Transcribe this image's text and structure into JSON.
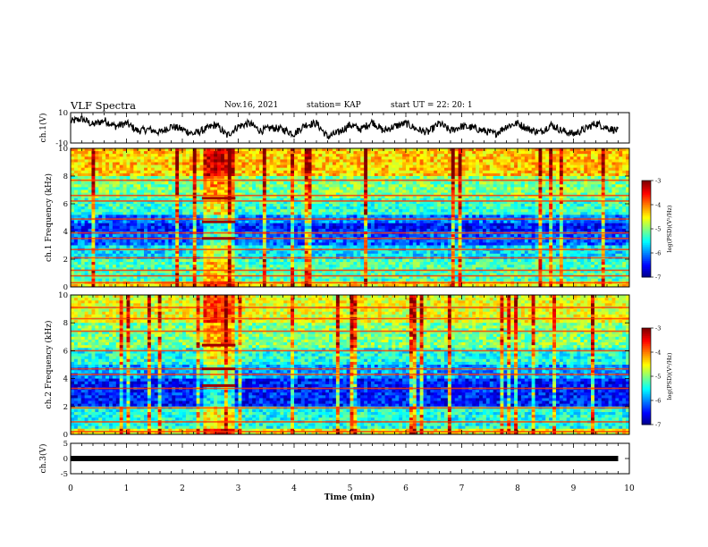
{
  "header": {
    "title": "VLF Spectra",
    "date": "Nov.16, 2021",
    "station": "station= KAP",
    "start": "start  UT  =   22: 20: 1"
  },
  "chart_data": [
    {
      "type": "line",
      "panel": "ch1-waveform",
      "title": "",
      "xlabel": "",
      "ylabel": "ch.1(V)",
      "xlim": [
        0,
        10
      ],
      "ylim": [
        -10,
        10
      ],
      "yticks": [
        "10",
        "-10"
      ],
      "series": [
        {
          "x": [
            0.0,
            0.2,
            0.4,
            0.6,
            0.8,
            1.0,
            1.2,
            1.4,
            1.6,
            1.8,
            2.0,
            2.2,
            2.4,
            2.6,
            2.8,
            3.0,
            3.2,
            3.4,
            3.6,
            3.8,
            4.0,
            4.2,
            4.4,
            4.6,
            4.8,
            5.0,
            5.2,
            5.4,
            5.6,
            5.8,
            6.0,
            6.2,
            6.4,
            6.6,
            6.8,
            7.0,
            7.2,
            7.4,
            7.6,
            7.8,
            8.0,
            8.2,
            8.4,
            8.6,
            8.8,
            9.0,
            9.2,
            9.4,
            9.6,
            9.8
          ],
          "values": [
            4,
            6,
            2,
            5,
            1,
            3,
            -2,
            -1,
            -3,
            1,
            -1,
            -4,
            -1,
            2,
            -5,
            1,
            3,
            -2,
            0,
            -1,
            -4,
            2,
            3,
            -6,
            -3,
            2,
            -1,
            4,
            -2,
            1,
            3,
            -1,
            -3,
            3,
            -2,
            1,
            0,
            -2,
            -4,
            1,
            3,
            -1,
            -3,
            2,
            -2,
            -4,
            -1,
            3,
            0,
            -2
          ]
        }
      ]
    },
    {
      "type": "heatmap",
      "panel": "ch1-spectrogram",
      "title": "",
      "xlabel": "",
      "ylabel": "ch.1 Frequency (kHz)",
      "xlim": [
        0,
        10
      ],
      "ylim": [
        0,
        10
      ],
      "yticks": [
        "0",
        "2",
        "4",
        "6",
        "8",
        "10"
      ],
      "colorbar": {
        "label": "log(PSD)(V²/Hz)",
        "range": [
          -7,
          -3
        ],
        "ticks": [
          "-3",
          "-4",
          "-5",
          "-6",
          "-7"
        ]
      },
      "bands_khz": [
        {
          "from": 8.0,
          "to": 10.0,
          "level": -4.3
        },
        {
          "from": 6.5,
          "to": 8.0,
          "level": -5.0
        },
        {
          "from": 5.2,
          "to": 6.5,
          "level": -5.3
        },
        {
          "from": 4.6,
          "to": 5.2,
          "level": -6.0
        },
        {
          "from": 4.0,
          "to": 4.6,
          "level": -6.4
        },
        {
          "from": 3.0,
          "to": 4.0,
          "level": -6.1
        },
        {
          "from": 2.0,
          "to": 3.0,
          "level": -5.6
        },
        {
          "from": 0.5,
          "to": 2.0,
          "level": -5.2
        },
        {
          "from": 0.0,
          "to": 0.5,
          "level": -4.4
        }
      ],
      "lines_khz": [
        0.3,
        0.8,
        1.2,
        2.1,
        2.7,
        3.5,
        3.9,
        4.9,
        6.2,
        6.6,
        7.7
      ],
      "burst_min": [
        2.35,
        2.95
      ]
    },
    {
      "type": "heatmap",
      "panel": "ch2-spectrogram",
      "title": "",
      "xlabel": "",
      "ylabel": "ch.2 Frequency (kHz)",
      "xlim": [
        0,
        10
      ],
      "ylim": [
        0,
        10
      ],
      "yticks": [
        "0",
        "2",
        "4",
        "6",
        "8",
        "10"
      ],
      "colorbar": {
        "label": "log(PSD)(V²/Hz)",
        "range": [
          -7,
          -3
        ],
        "ticks": [
          "-3",
          "-4",
          "-5",
          "-6",
          "-7"
        ]
      },
      "bands_khz": [
        {
          "from": 8.0,
          "to": 10.0,
          "level": -4.6
        },
        {
          "from": 6.2,
          "to": 8.0,
          "level": -5.0
        },
        {
          "from": 5.0,
          "to": 6.2,
          "level": -5.4
        },
        {
          "from": 4.0,
          "to": 5.0,
          "level": -5.9
        },
        {
          "from": 2.0,
          "to": 4.0,
          "level": -6.4
        },
        {
          "from": 0.5,
          "to": 2.0,
          "level": -5.4
        },
        {
          "from": 0.0,
          "to": 0.5,
          "level": -4.5
        }
      ],
      "lines_khz": [
        0.2,
        0.9,
        1.9,
        3.3,
        4.3,
        4.7,
        6.0,
        7.4,
        8.3,
        9.1
      ],
      "burst_min": [
        2.35,
        2.95
      ]
    },
    {
      "type": "line",
      "panel": "ch3-waveform",
      "title": "",
      "xlabel": "Time  (min)",
      "ylabel": "ch.3(V)",
      "xlim": [
        0,
        10
      ],
      "ylim": [
        -5,
        5
      ],
      "yticks": [
        "5",
        "0",
        "-5"
      ],
      "xticks": [
        "0",
        "1",
        "2",
        "3",
        "4",
        "5",
        "6",
        "7",
        "8",
        "9",
        "10"
      ],
      "series": [
        {
          "x": [
            0.0,
            9.8
          ],
          "values": [
            0,
            0
          ]
        }
      ]
    }
  ]
}
